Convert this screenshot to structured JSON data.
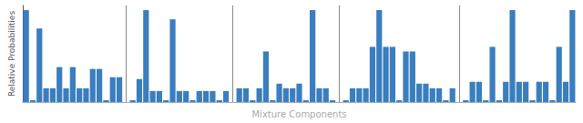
{
  "chart_data": {
    "type": "bar",
    "xlabel": "Mixture Components",
    "ylabel": "Relative Probabilities",
    "color": "#3a7ebf",
    "series": [
      {
        "values": [
          1.0,
          0.02,
          0.8,
          0.15,
          0.15,
          0.38,
          0.15,
          0.38,
          0.15,
          0.15,
          0.36,
          0.36,
          0.02,
          0.27,
          0.27
        ]
      },
      {
        "values": [
          0.02,
          0.25,
          1.0,
          0.12,
          0.12,
          0.02,
          0.9,
          0.12,
          0.12,
          0.02,
          0.12,
          0.12,
          0.12,
          0.02,
          0.12
        ]
      },
      {
        "values": [
          0.15,
          0.15,
          0.02,
          0.15,
          0.55,
          0.02,
          0.2,
          0.15,
          0.15,
          0.2,
          0.02,
          1.0,
          0.15,
          0.15,
          0.02
        ]
      },
      {
        "values": [
          0.02,
          0.15,
          0.15,
          0.15,
          0.6,
          1.0,
          0.6,
          0.6,
          0.02,
          0.55,
          0.55,
          0.2,
          0.2,
          0.15,
          0.15,
          0.02,
          0.15
        ]
      },
      {
        "values": [
          0.02,
          0.22,
          0.22,
          0.02,
          0.6,
          0.02,
          0.22,
          1.0,
          0.22,
          0.22,
          0.02,
          0.22,
          0.22,
          0.02,
          0.6,
          0.22,
          1.0
        ]
      }
    ],
    "ylim": [
      0,
      1.05
    ],
    "grid": false,
    "tick_labels": false
  }
}
